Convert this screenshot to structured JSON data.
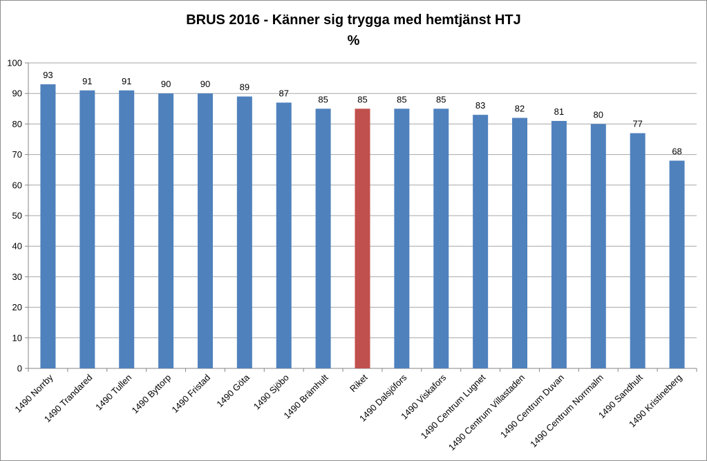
{
  "chart_data": {
    "type": "bar",
    "title": "BRUS 2016 - Känner sig trygga med hemtjänst HTJ",
    "subtitle": "%",
    "xlabel": "",
    "ylabel": "",
    "ylim": [
      0,
      100
    ],
    "yticks": [
      "0",
      "10",
      "20",
      "30",
      "40",
      "50",
      "60",
      "70",
      "80",
      "90",
      "100"
    ],
    "grid": true,
    "legend": "none",
    "categories": [
      "1490 Norrby",
      "1490 Trandared",
      "1490 Tullen",
      "1490 Byttorp",
      "1490 Fristad",
      "1490 Göta",
      "1490 Sjöbo",
      "1490 Brämhult",
      "Riket",
      "1490 Dalsjöfors",
      "1490 Viskafors",
      "1490 Centrum Lugnet",
      "1490 Centrum Villastaden",
      "1490 Centrum Duvan",
      "1490 Centrum Norrmalm",
      "1490 Sandhult",
      "1490 Kristineberg"
    ],
    "values": [
      93,
      91,
      91,
      90,
      90,
      89,
      87,
      85,
      85,
      85,
      85,
      83,
      82,
      81,
      80,
      77,
      68
    ],
    "data_labels": [
      "93",
      "91",
      "91",
      "90",
      "90",
      "89",
      "87",
      "85",
      "85",
      "85",
      "85",
      "83",
      "82",
      "81",
      "80",
      "77",
      "68"
    ],
    "bar_color": "#4f81bd",
    "highlight_category": "Riket",
    "highlight_color": "#c0504d",
    "gridline_color": "#a6a6a6"
  }
}
